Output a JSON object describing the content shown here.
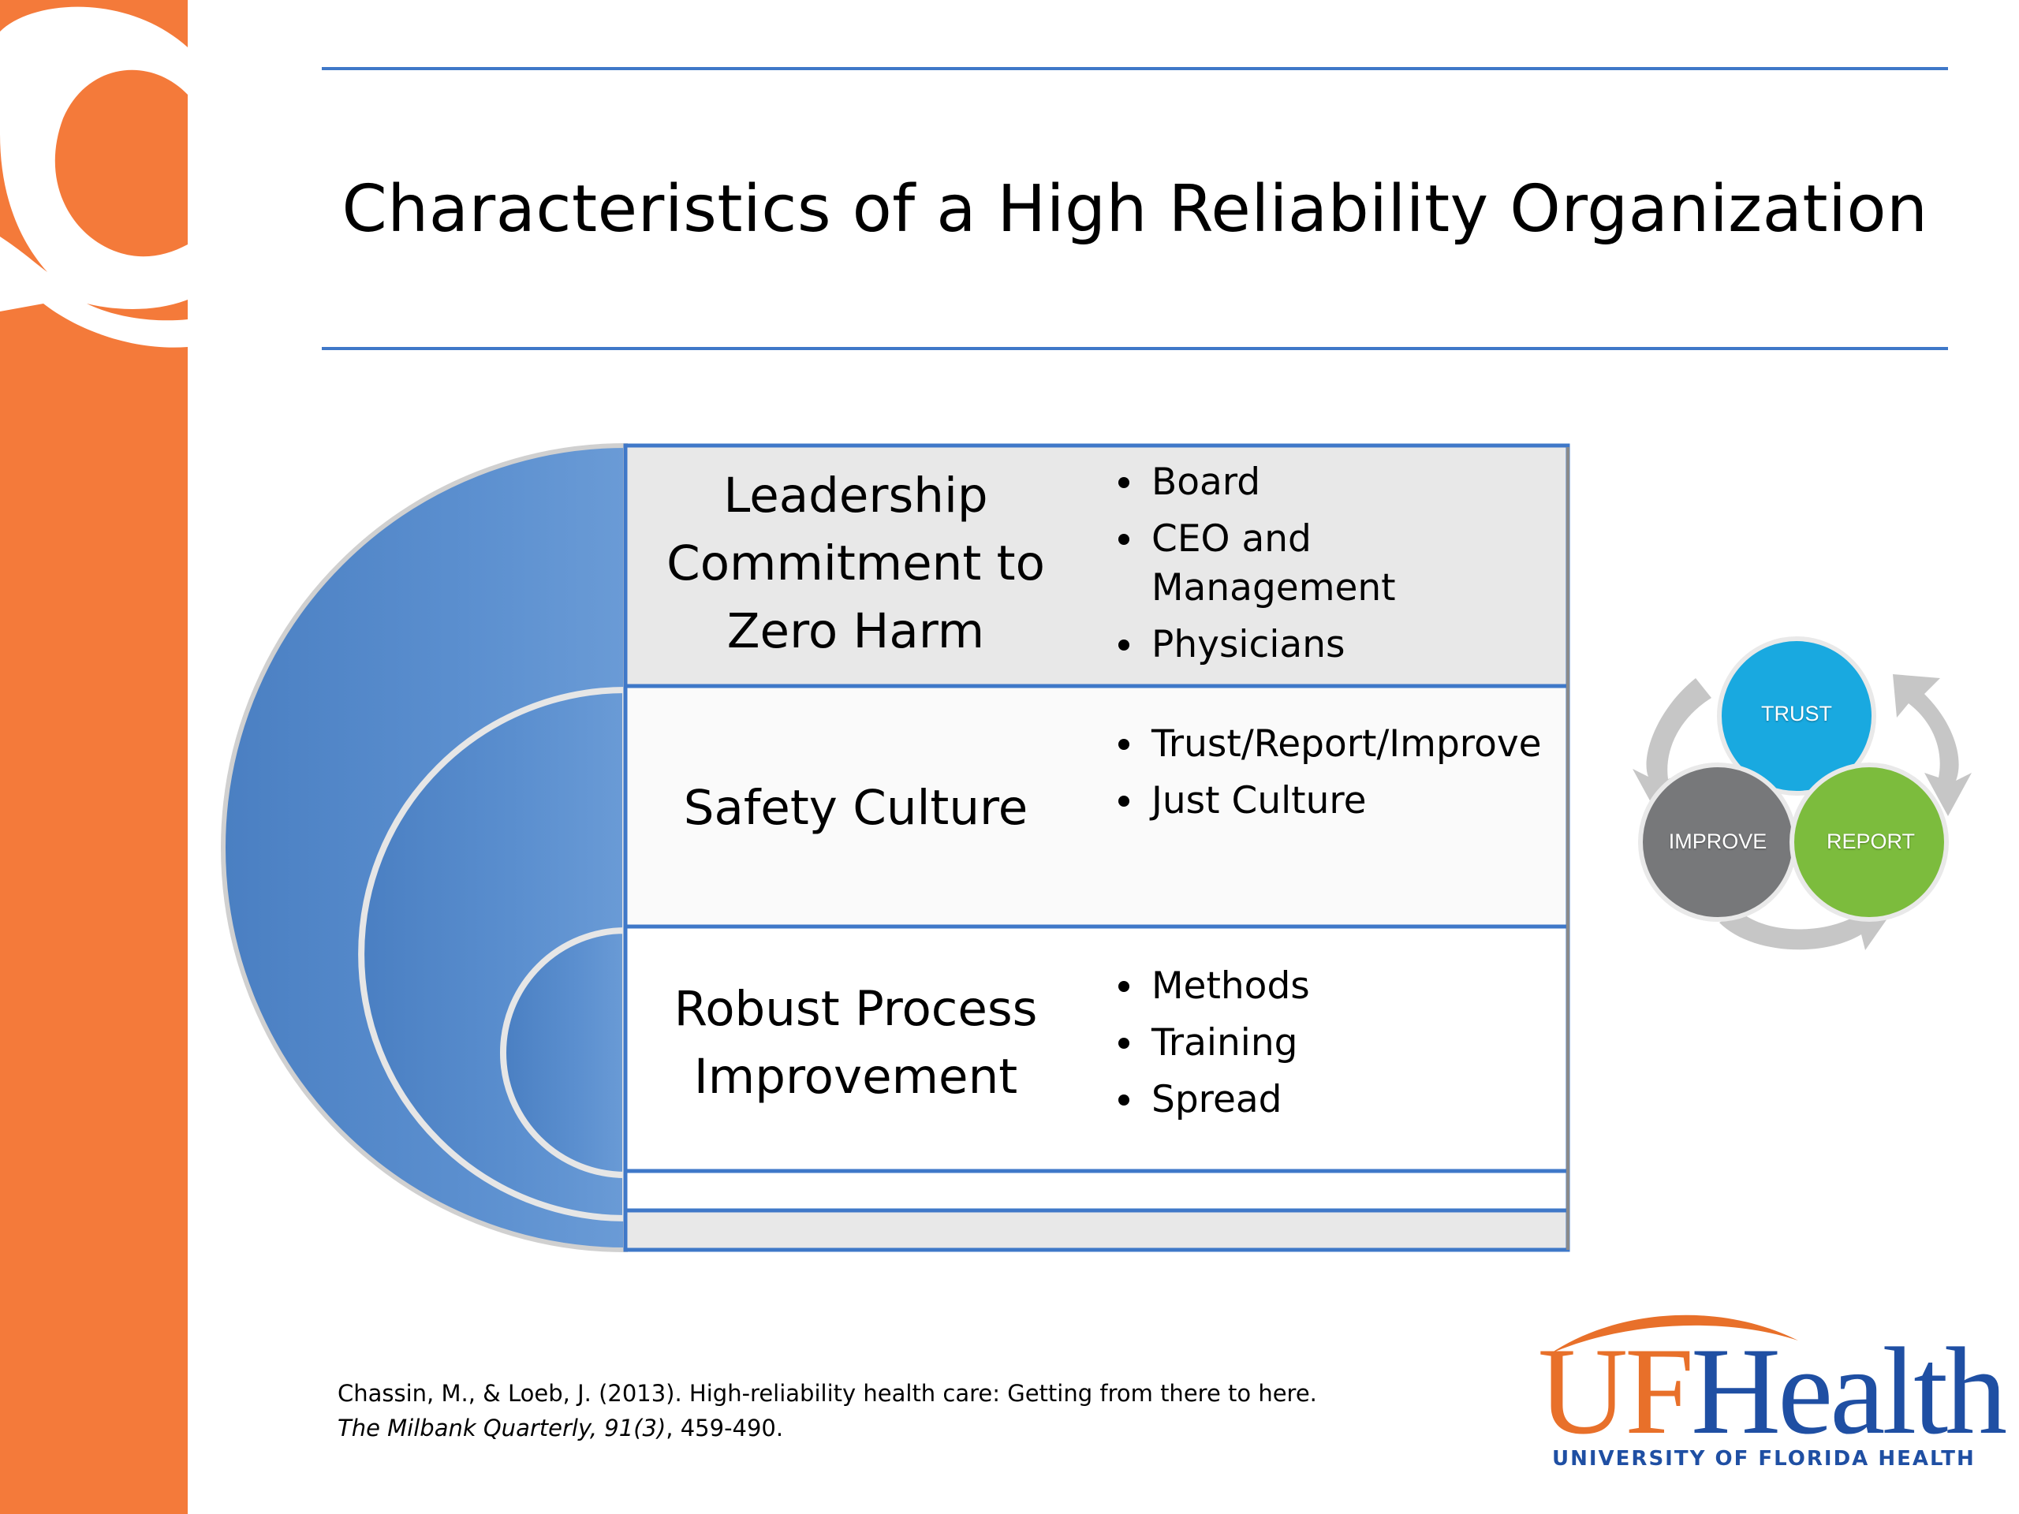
{
  "slide": {
    "title": "Characteristics of a High Reliability Organization"
  },
  "diagram": {
    "rows": [
      {
        "heading": [
          "Leadership",
          "Commitment to",
          "Zero Harm"
        ],
        "bullets": [
          "Board",
          "CEO and Management",
          "Physicians"
        ]
      },
      {
        "heading": [
          "Safety Culture"
        ],
        "bullets": [
          "Trust/Report/Improve",
          "Just Culture"
        ]
      },
      {
        "heading": [
          "Robust Process",
          "Improvement"
        ],
        "bullets": [
          "Methods",
          "Training",
          "Spread"
        ]
      }
    ],
    "colors": {
      "arc_fill": "#5b8fcf",
      "box_border": "#3f78c8",
      "top_box_fill": "#e8e8e8",
      "box_fill": "#fafafa"
    }
  },
  "cycle": {
    "labels": {
      "trust": "TRUST",
      "report": "REPORT",
      "improve": "IMPROVE"
    },
    "colors": {
      "trust": "#19a9e0",
      "report": "#7cbc3d",
      "improve": "#77787a",
      "arrows": "#c6c6c6"
    }
  },
  "citation": {
    "line1": "Chassin, M., & Loeb, J. (2013). High-reliability health care: Getting from there to here.",
    "journal": "The Milbank Quarterly, 91(3)",
    "pages": ", 459-490."
  },
  "logo": {
    "uf": "UF",
    "health": "Health",
    "subtitle": "UNIVERSITY OF FLORIDA HEALTH",
    "colors": {
      "orange": "#e8702a",
      "blue": "#1f4fa3"
    }
  },
  "brand": {
    "sidebar_color": "#f47a3a",
    "rule_color": "#3f78c8",
    "sidebar_mark_icon": "q-logo-icon"
  }
}
